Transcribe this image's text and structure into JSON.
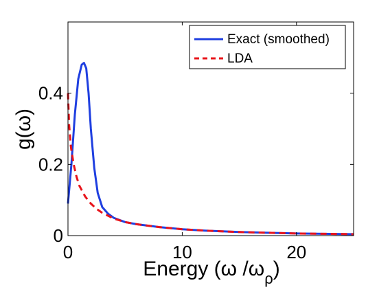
{
  "chart_data": {
    "type": "line",
    "title": "",
    "xlabel": {
      "main": "Energy (ω /ω",
      "sub": "ρ",
      "close": ")"
    },
    "ylabel": "g(ω)",
    "xlim": [
      0,
      25
    ],
    "ylim": [
      0,
      0.6
    ],
    "xticks": [
      0,
      10,
      20
    ],
    "xtick_labels": [
      "0",
      "10",
      "20"
    ],
    "yticks": [
      0,
      0.2,
      0.4
    ],
    "ytick_labels": [
      "0",
      "0.2",
      "0.4"
    ],
    "grid": false,
    "legend_position": "top-right",
    "series": [
      {
        "name": "Exact (smoothed)",
        "color": "#1f3fe0",
        "style": "solid",
        "x": [
          0,
          0.3,
          0.6,
          0.9,
          1.2,
          1.4,
          1.6,
          1.8,
          2.0,
          2.3,
          2.6,
          3.0,
          3.5,
          4.0,
          5.0,
          6.0,
          8.0,
          10.0,
          12.0,
          15.0,
          20.0,
          25.0
        ],
        "y": [
          0.09,
          0.2,
          0.34,
          0.44,
          0.48,
          0.485,
          0.47,
          0.4,
          0.3,
          0.19,
          0.12,
          0.08,
          0.062,
          0.05,
          0.038,
          0.032,
          0.024,
          0.018,
          0.014,
          0.01,
          0.006,
          0.004
        ]
      },
      {
        "name": "LDA",
        "color": "#e8141b",
        "style": "dashed",
        "x": [
          0,
          0.1,
          0.25,
          0.5,
          0.75,
          1.0,
          1.5,
          2.0,
          2.5,
          3.0,
          4.0,
          5.0,
          6.0,
          8.0,
          10.0,
          12.0,
          15.0,
          20.0,
          25.0
        ],
        "y": [
          0.4,
          0.31,
          0.25,
          0.2,
          0.165,
          0.14,
          0.11,
          0.09,
          0.075,
          0.064,
          0.048,
          0.038,
          0.032,
          0.024,
          0.018,
          0.014,
          0.01,
          0.006,
          0.004
        ]
      }
    ]
  }
}
